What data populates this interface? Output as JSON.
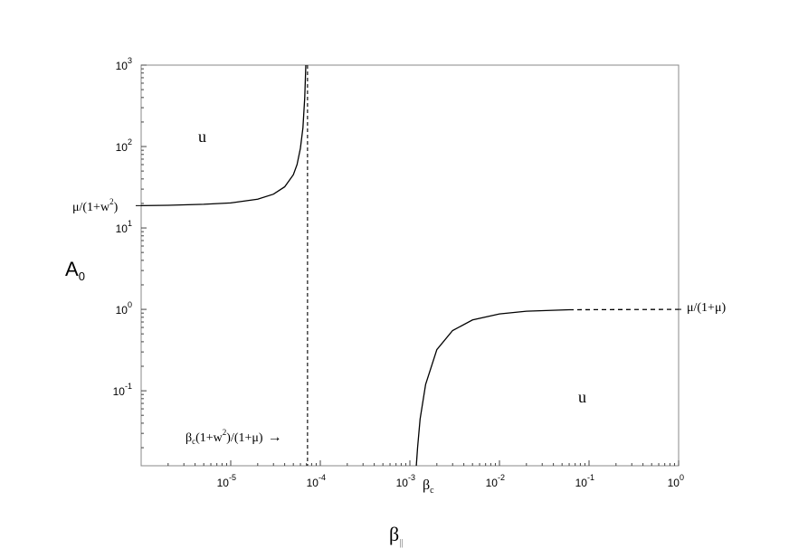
{
  "chart_data": {
    "type": "line",
    "title": "",
    "xlabel": {
      "base": "β",
      "sub": "||"
    },
    "ylabel": {
      "base": "A",
      "sub": "0"
    },
    "x_scale": "log",
    "y_scale": "log",
    "xlim": [
      1e-06,
      1
    ],
    "ylim": [
      0.012,
      1000
    ],
    "grid": false,
    "x_ticks": [
      {
        "value": 1e-05,
        "base": "10",
        "exp": "-5"
      },
      {
        "value": 0.0001,
        "base": "10",
        "exp": "-4"
      },
      {
        "value": 0.001,
        "base": "10",
        "exp": "-3"
      },
      {
        "value": 0.01,
        "base": "10",
        "exp": "-2"
      },
      {
        "value": 0.1,
        "base": "10",
        "exp": "-1"
      },
      {
        "value": 1,
        "base": "10",
        "exp": "0"
      }
    ],
    "y_ticks": [
      {
        "value": 0.1,
        "base": "10",
        "exp": "-1"
      },
      {
        "value": 1,
        "base": "10",
        "exp": "0"
      },
      {
        "value": 10,
        "base": "10",
        "exp": "1"
      },
      {
        "value": 100,
        "base": "10",
        "exp": "2"
      },
      {
        "value": 1000,
        "base": "10",
        "exp": "3"
      }
    ],
    "series": [
      {
        "style": "solid",
        "x": [
          1e-06,
          2e-06,
          5e-06,
          1e-05,
          2e-05,
          3e-05,
          4e-05,
          5e-05,
          5.5e-05,
          6e-05,
          6.4e-05,
          6.7e-05,
          6.9e-05
        ],
        "y": [
          18.8,
          19,
          19.5,
          20.3,
          22.5,
          26,
          32,
          45,
          60,
          95,
          170,
          400,
          1000
        ]
      },
      {
        "style": "solid",
        "x": [
          0.00118,
          0.00122,
          0.0013,
          0.0015,
          0.002,
          0.003,
          0.005,
          0.01,
          0.02,
          0.06
        ],
        "y": [
          0.012,
          0.02,
          0.045,
          0.12,
          0.32,
          0.55,
          0.74,
          0.88,
          0.95,
          0.99
        ]
      },
      {
        "style": "dashed",
        "x": [
          0.06,
          1
        ],
        "y": [
          0.99,
          1.0
        ]
      }
    ],
    "vertical_line": {
      "x": 7.2e-05,
      "style": "dashed"
    },
    "annotations": {
      "u_top": "u",
      "u_bottom": "u",
      "low_asymptote": {
        "pre": "μ/(1+w",
        "sup": "2",
        "post": ")",
        "y": 18.8
      },
      "high_asymptote": {
        "text": "μ/(1+μ)",
        "y": 1.0
      },
      "vline_label": {
        "b": "β",
        "bsub": "c",
        "pre": "(1+w",
        "sup": "2",
        "post": ")/(1+μ)",
        "arrow": "→"
      },
      "beta_c": {
        "b": "β",
        "sub": "c",
        "x": 0.00118
      }
    }
  }
}
